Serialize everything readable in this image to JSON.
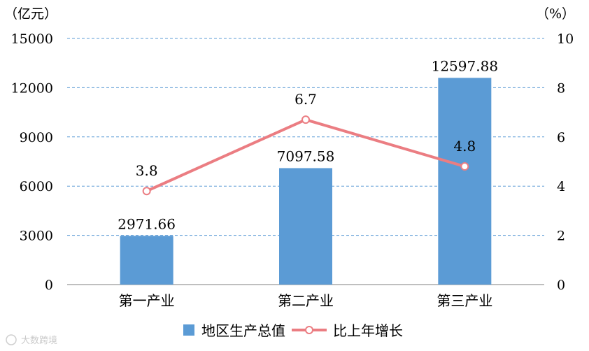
{
  "chart_data": {
    "type": "bar",
    "categories": [
      "第一产业",
      "第二产业",
      "第三产业"
    ],
    "series": [
      {
        "name": "地区生产总值",
        "type": "bar",
        "axis": "left",
        "values": [
          2971.66,
          7097.58,
          12597.88
        ],
        "labels": [
          "2971.66",
          "7097.58",
          "12597.88"
        ]
      },
      {
        "name": "比上年增长",
        "type": "line",
        "axis": "right",
        "values": [
          3.8,
          6.7,
          4.8
        ],
        "labels": [
          "3.8",
          "6.7",
          "4.8"
        ]
      }
    ],
    "y_left": {
      "unit": "（亿元）",
      "ylim": [
        0,
        15000
      ],
      "ticks": [
        "0",
        "3000",
        "6000",
        "9000",
        "12000",
        "15000"
      ]
    },
    "y_right": {
      "unit": "（%）",
      "ylim": [
        0,
        10
      ],
      "ticks": [
        "0",
        "2",
        "4",
        "6",
        "8",
        "10"
      ]
    },
    "grid": true,
    "legend": "bottom-center"
  },
  "colors": {
    "bar": "#5b9bd5",
    "line": "#eb7d82",
    "grid": "#5b9bd5",
    "axis": "#7f7f7f"
  },
  "watermark": "大数跨境"
}
